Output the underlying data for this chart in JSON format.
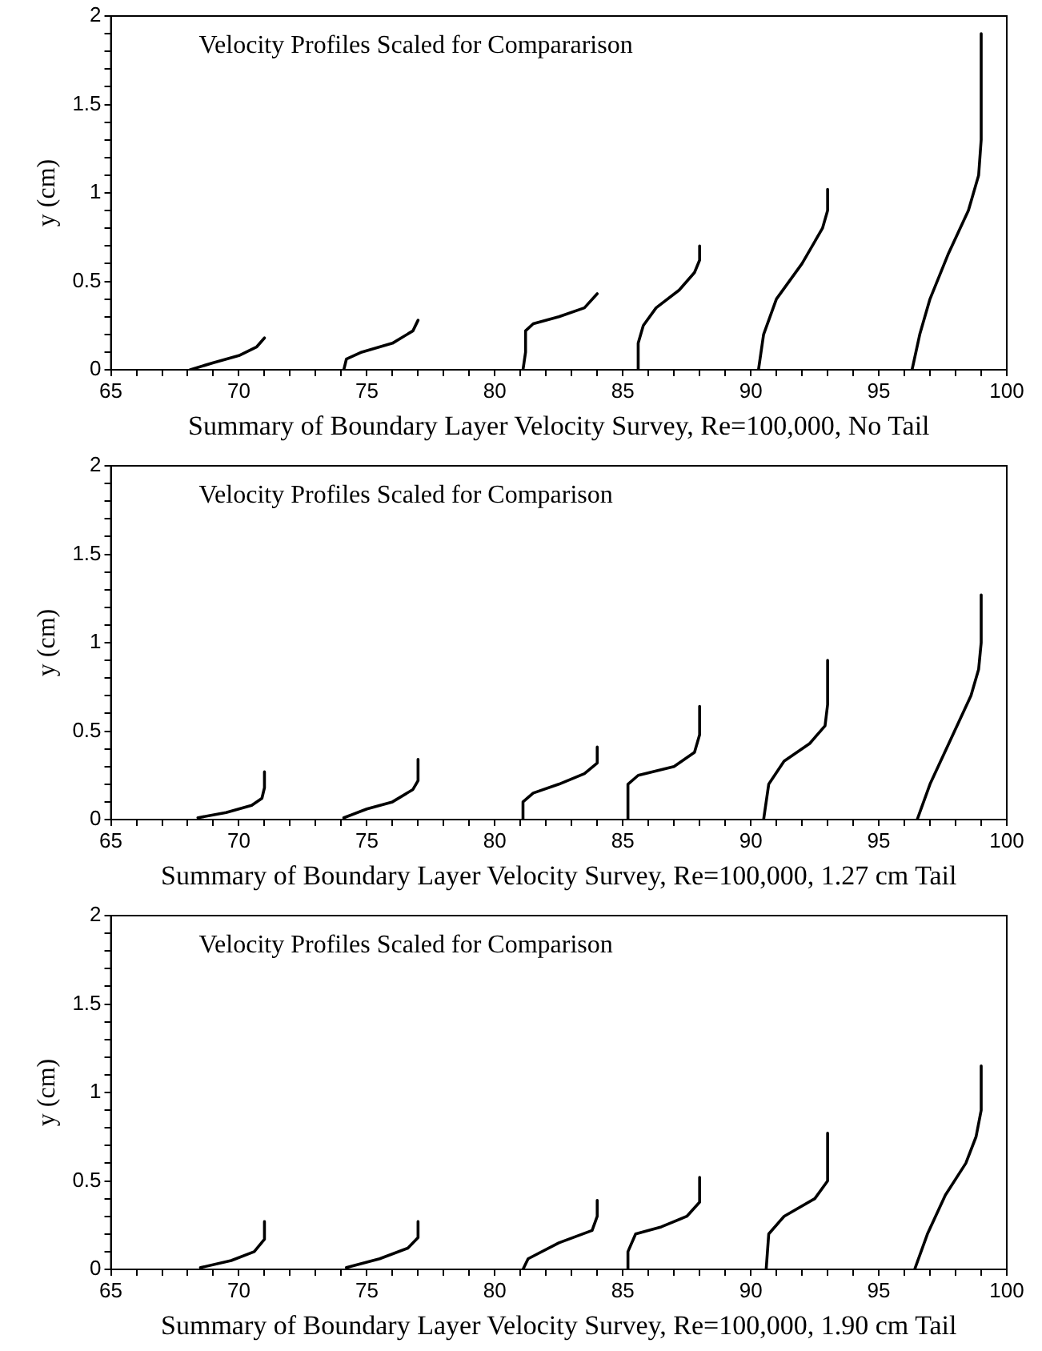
{
  "chart_data": [
    {
      "type": "line",
      "title": "Velocity Profiles Scaled for Compararison",
      "xlabel": "Summary of Boundary Layer Velocity Survey, Re=100,000, No Tail",
      "ylabel": "y (cm)",
      "xlim": [
        65,
        100
      ],
      "ylim": [
        0,
        2
      ],
      "grid": false,
      "legend": false,
      "marker": "none",
      "line_style": "solid",
      "xticks": [
        65,
        {
          "value": 66,
          "label": null
        },
        {
          "value": 67,
          "label": null
        },
        {
          "value": 68,
          "label": null
        },
        {
          "value": 69,
          "label": null
        },
        70,
        {
          "value": 71,
          "label": null
        },
        {
          "value": 72,
          "label": null
        },
        {
          "value": 73,
          "label": null
        },
        {
          "value": 74,
          "label": null
        },
        75,
        {
          "value": 76,
          "label": null
        },
        {
          "value": 77,
          "label": null
        },
        {
          "value": 78,
          "label": null
        },
        {
          "value": 79,
          "label": null
        },
        80,
        {
          "value": 81,
          "label": null
        },
        {
          "value": 82,
          "label": null
        },
        {
          "value": 83,
          "label": null
        },
        {
          "value": 84,
          "label": null
        },
        85,
        {
          "value": 86,
          "label": null
        },
        {
          "value": 87,
          "label": null
        },
        {
          "value": 88,
          "label": null
        },
        {
          "value": 89,
          "label": null
        },
        90,
        {
          "value": 91,
          "label": null
        },
        {
          "value": 92,
          "label": null
        },
        {
          "value": 93,
          "label": null
        },
        {
          "value": 94,
          "label": null
        },
        95,
        {
          "value": 96,
          "label": null
        },
        {
          "value": 97,
          "label": null
        },
        {
          "value": 98,
          "label": null
        },
        {
          "value": 99,
          "label": null
        },
        100
      ],
      "yticks": [
        0,
        {
          "value": 0.1,
          "label": null
        },
        {
          "value": 0.2,
          "label": null
        },
        {
          "value": 0.3,
          "label": null
        },
        {
          "value": 0.4,
          "label": null
        },
        0.5,
        {
          "value": 0.6,
          "label": null
        },
        {
          "value": 0.7,
          "label": null
        },
        {
          "value": 0.8,
          "label": null
        },
        {
          "value": 0.9,
          "label": null
        },
        1,
        {
          "value": 1.1,
          "label": null
        },
        {
          "value": 1.2,
          "label": null
        },
        {
          "value": 1.3,
          "label": null
        },
        {
          "value": 1.4,
          "label": null
        },
        1.5,
        {
          "value": 1.6,
          "label": null
        },
        {
          "value": 1.7,
          "label": null
        },
        {
          "value": 1.8,
          "label": null
        },
        {
          "value": 1.9,
          "label": null
        },
        2
      ],
      "series": [
        {
          "color": "#000000",
          "x": [
            68.1,
            69,
            70,
            70.7,
            71
          ],
          "values": [
            0,
            0.04,
            0.08,
            0.13,
            0.18
          ]
        },
        {
          "color": "#000000",
          "x": [
            74.1,
            74.2,
            74.8,
            76,
            76.8,
            77
          ],
          "values": [
            0,
            0.06,
            0.1,
            0.15,
            0.22,
            0.28
          ]
        },
        {
          "color": "#000000",
          "x": [
            81.1,
            81.2,
            81.2,
            81.5,
            82.5,
            83.5,
            84
          ],
          "values": [
            0,
            0.1,
            0.22,
            0.26,
            0.3,
            0.35,
            0.43
          ]
        },
        {
          "color": "#000000",
          "x": [
            85.6,
            85.6,
            85.8,
            86.3,
            87.2,
            87.8,
            88,
            88
          ],
          "values": [
            0,
            0.15,
            0.25,
            0.35,
            0.45,
            0.55,
            0.62,
            0.7
          ]
        },
        {
          "color": "#000000",
          "x": [
            90.3,
            90.5,
            91,
            92,
            92.8,
            93,
            93
          ],
          "values": [
            0,
            0.2,
            0.4,
            0.6,
            0.8,
            0.9,
            1.02
          ]
        },
        {
          "color": "#000000",
          "x": [
            96.3,
            96.6,
            97,
            97.7,
            98.5,
            98.9,
            99,
            99
          ],
          "values": [
            0,
            0.2,
            0.4,
            0.65,
            0.9,
            1.1,
            1.3,
            1.9
          ]
        }
      ]
    },
    {
      "type": "line",
      "title": "Velocity Profiles Scaled for Comparison",
      "xlabel": "Summary of Boundary Layer Velocity Survey, Re=100,000, 1.27 cm Tail",
      "ylabel": "y (cm)",
      "xlim": [
        65,
        100
      ],
      "ylim": [
        0,
        2
      ],
      "grid": false,
      "legend": false,
      "marker": "none",
      "line_style": "solid",
      "xticks": [
        65,
        {
          "value": 66,
          "label": null
        },
        {
          "value": 67,
          "label": null
        },
        {
          "value": 68,
          "label": null
        },
        {
          "value": 69,
          "label": null
        },
        70,
        {
          "value": 71,
          "label": null
        },
        {
          "value": 72,
          "label": null
        },
        {
          "value": 73,
          "label": null
        },
        {
          "value": 74,
          "label": null
        },
        75,
        {
          "value": 76,
          "label": null
        },
        {
          "value": 77,
          "label": null
        },
        {
          "value": 78,
          "label": null
        },
        {
          "value": 79,
          "label": null
        },
        80,
        {
          "value": 81,
          "label": null
        },
        {
          "value": 82,
          "label": null
        },
        {
          "value": 83,
          "label": null
        },
        {
          "value": 84,
          "label": null
        },
        85,
        {
          "value": 86,
          "label": null
        },
        {
          "value": 87,
          "label": null
        },
        {
          "value": 88,
          "label": null
        },
        {
          "value": 89,
          "label": null
        },
        90,
        {
          "value": 91,
          "label": null
        },
        {
          "value": 92,
          "label": null
        },
        {
          "value": 93,
          "label": null
        },
        {
          "value": 94,
          "label": null
        },
        95,
        {
          "value": 96,
          "label": null
        },
        {
          "value": 97,
          "label": null
        },
        {
          "value": 98,
          "label": null
        },
        {
          "value": 99,
          "label": null
        },
        100
      ],
      "yticks": [
        0,
        {
          "value": 0.1,
          "label": null
        },
        {
          "value": 0.2,
          "label": null
        },
        {
          "value": 0.3,
          "label": null
        },
        {
          "value": 0.4,
          "label": null
        },
        0.5,
        {
          "value": 0.6,
          "label": null
        },
        {
          "value": 0.7,
          "label": null
        },
        {
          "value": 0.8,
          "label": null
        },
        {
          "value": 0.9,
          "label": null
        },
        1,
        {
          "value": 1.1,
          "label": null
        },
        {
          "value": 1.2,
          "label": null
        },
        {
          "value": 1.3,
          "label": null
        },
        {
          "value": 1.4,
          "label": null
        },
        1.5,
        {
          "value": 1.6,
          "label": null
        },
        {
          "value": 1.7,
          "label": null
        },
        {
          "value": 1.8,
          "label": null
        },
        {
          "value": 1.9,
          "label": null
        },
        2
      ],
      "series": [
        {
          "color": "#000000",
          "x": [
            68.4,
            69.5,
            70.5,
            70.9,
            71,
            71
          ],
          "values": [
            0.01,
            0.04,
            0.08,
            0.12,
            0.18,
            0.27
          ]
        },
        {
          "color": "#000000",
          "x": [
            74.1,
            75,
            76,
            76.8,
            77,
            77
          ],
          "values": [
            0.01,
            0.06,
            0.1,
            0.17,
            0.22,
            0.34
          ]
        },
        {
          "color": "#000000",
          "x": [
            81.1,
            81.1,
            81.5,
            82.5,
            83.5,
            84,
            84
          ],
          "values": [
            0,
            0.1,
            0.15,
            0.2,
            0.26,
            0.32,
            0.41
          ]
        },
        {
          "color": "#000000",
          "x": [
            85.2,
            85.2,
            85.6,
            87,
            87.8,
            88,
            88
          ],
          "values": [
            0,
            0.2,
            0.25,
            0.3,
            0.38,
            0.48,
            0.64
          ]
        },
        {
          "color": "#000000",
          "x": [
            90.5,
            90.7,
            91.3,
            92.3,
            92.9,
            93,
            93
          ],
          "values": [
            0,
            0.2,
            0.33,
            0.43,
            0.53,
            0.65,
            0.9
          ]
        },
        {
          "color": "#000000",
          "x": [
            96.5,
            97,
            97.8,
            98.6,
            98.9,
            99,
            99
          ],
          "values": [
            0,
            0.2,
            0.45,
            0.7,
            0.85,
            1,
            1.27
          ]
        }
      ]
    },
    {
      "type": "line",
      "title": "Velocity Profiles Scaled for Comparison",
      "xlabel": "Summary of Boundary Layer Velocity Survey, Re=100,000, 1.90 cm Tail",
      "ylabel": "y (cm)",
      "xlim": [
        65,
        100
      ],
      "ylim": [
        0,
        2
      ],
      "grid": false,
      "legend": false,
      "marker": "none",
      "line_style": "solid",
      "xticks": [
        65,
        {
          "value": 66,
          "label": null
        },
        {
          "value": 67,
          "label": null
        },
        {
          "value": 68,
          "label": null
        },
        {
          "value": 69,
          "label": null
        },
        70,
        {
          "value": 71,
          "label": null
        },
        {
          "value": 72,
          "label": null
        },
        {
          "value": 73,
          "label": null
        },
        {
          "value": 74,
          "label": null
        },
        75,
        {
          "value": 76,
          "label": null
        },
        {
          "value": 77,
          "label": null
        },
        {
          "value": 78,
          "label": null
        },
        {
          "value": 79,
          "label": null
        },
        80,
        {
          "value": 81,
          "label": null
        },
        {
          "value": 82,
          "label": null
        },
        {
          "value": 83,
          "label": null
        },
        {
          "value": 84,
          "label": null
        },
        85,
        {
          "value": 86,
          "label": null
        },
        {
          "value": 87,
          "label": null
        },
        {
          "value": 88,
          "label": null
        },
        {
          "value": 89,
          "label": null
        },
        90,
        {
          "value": 91,
          "label": null
        },
        {
          "value": 92,
          "label": null
        },
        {
          "value": 93,
          "label": null
        },
        {
          "value": 94,
          "label": null
        },
        95,
        {
          "value": 96,
          "label": null
        },
        {
          "value": 97,
          "label": null
        },
        {
          "value": 98,
          "label": null
        },
        {
          "value": 99,
          "label": null
        },
        100
      ],
      "yticks": [
        0,
        {
          "value": 0.1,
          "label": null
        },
        {
          "value": 0.2,
          "label": null
        },
        {
          "value": 0.3,
          "label": null
        },
        {
          "value": 0.4,
          "label": null
        },
        0.5,
        {
          "value": 0.6,
          "label": null
        },
        {
          "value": 0.7,
          "label": null
        },
        {
          "value": 0.8,
          "label": null
        },
        {
          "value": 0.9,
          "label": null
        },
        1,
        {
          "value": 1.1,
          "label": null
        },
        {
          "value": 1.2,
          "label": null
        },
        {
          "value": 1.3,
          "label": null
        },
        {
          "value": 1.4,
          "label": null
        },
        1.5,
        {
          "value": 1.6,
          "label": null
        },
        {
          "value": 1.7,
          "label": null
        },
        {
          "value": 1.8,
          "label": null
        },
        {
          "value": 1.9,
          "label": null
        },
        2
      ],
      "series": [
        {
          "color": "#000000",
          "x": [
            68.5,
            69.7,
            70.6,
            71,
            71
          ],
          "values": [
            0.01,
            0.05,
            0.1,
            0.17,
            0.27
          ]
        },
        {
          "color": "#000000",
          "x": [
            74.2,
            75.5,
            76.6,
            77,
            77
          ],
          "values": [
            0.01,
            0.06,
            0.12,
            0.18,
            0.27
          ]
        },
        {
          "color": "#000000",
          "x": [
            81.1,
            81.3,
            82.5,
            83.8,
            84,
            84
          ],
          "values": [
            0,
            0.06,
            0.15,
            0.22,
            0.3,
            0.39
          ]
        },
        {
          "color": "#000000",
          "x": [
            85.2,
            85.2,
            85.5,
            86.5,
            87.5,
            88,
            88
          ],
          "values": [
            0,
            0.1,
            0.2,
            0.24,
            0.3,
            0.38,
            0.52
          ]
        },
        {
          "color": "#000000",
          "x": [
            90.6,
            90.7,
            91.3,
            92.5,
            93,
            93
          ],
          "values": [
            0,
            0.2,
            0.3,
            0.4,
            0.5,
            0.77
          ]
        },
        {
          "color": "#000000",
          "x": [
            96.4,
            96.9,
            97.6,
            98.4,
            98.8,
            99,
            99
          ],
          "values": [
            0,
            0.2,
            0.42,
            0.6,
            0.75,
            0.9,
            1.15
          ]
        }
      ]
    }
  ]
}
